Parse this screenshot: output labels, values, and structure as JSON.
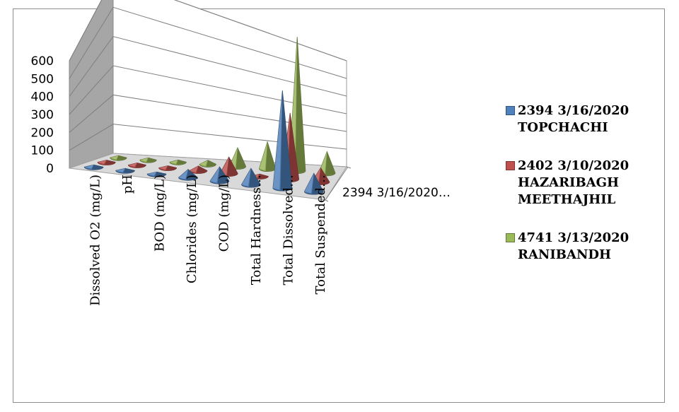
{
  "chart_data": {
    "type": "bar",
    "subtype": "3d-cone",
    "categories": [
      "Dissolved O2 (mg/L)",
      "pH",
      "BOD (mg/L)",
      "Chlorides (mg/L)",
      "COD (mg/L)",
      "Total Hardness…",
      "Total Dissolved…",
      "Total Suspended…"
    ],
    "series": [
      {
        "name": "2394 3/16/2020 TOPCHACHI",
        "color": "#4f81bd",
        "values": [
          5,
          7,
          3,
          40,
          70,
          80,
          480,
          90
        ]
      },
      {
        "name": "2402 3/10/2020 HAZARIBAGH MEETHAJHIL",
        "color": "#c0504d",
        "values": [
          5,
          7,
          3,
          20,
          70,
          10,
          280,
          60
        ]
      },
      {
        "name": "4741 3/13/2020 RANIBANDH",
        "color": "#9bbb59",
        "values": [
          5,
          7,
          3,
          15,
          70,
          100,
          500,
          80
        ]
      }
    ],
    "y_ticks": [
      "0",
      "100",
      "200",
      "300",
      "400",
      "500",
      "600"
    ],
    "ylim": [
      0,
      600
    ],
    "depth_label": "2394 3/16/2020…",
    "legend_position": "right",
    "grid": true
  }
}
